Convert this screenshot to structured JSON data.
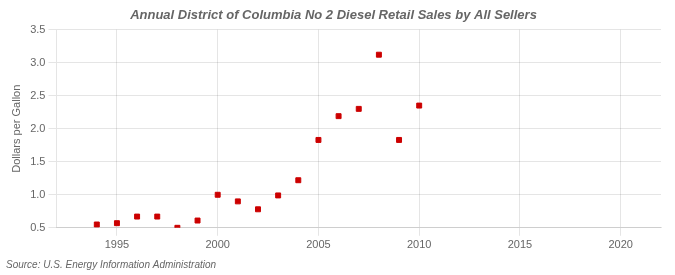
{
  "chart_data": {
    "type": "scatter",
    "title": "Annual District of Columbia No 2 Diesel Retail Sales by All Sellers",
    "ylabel": "Dollars per Gallon",
    "annotation": "Source: U.S. Energy Information Administration",
    "x": [
      1994,
      1995,
      1996,
      1997,
      1998,
      1999,
      2000,
      2001,
      2002,
      2003,
      2004,
      2005,
      2006,
      2007,
      2008,
      2009,
      2010
    ],
    "values": [
      0.55,
      0.57,
      0.67,
      0.67,
      0.5,
      0.61,
      1.0,
      0.9,
      0.78,
      0.99,
      1.22,
      1.83,
      2.19,
      2.3,
      3.12,
      1.83,
      2.35
    ],
    "color": "#cc0000",
    "marker": "square",
    "xlim": [
      1992,
      2022
    ],
    "xticks": [
      1995,
      2000,
      2005,
      2010,
      2015,
      2020
    ],
    "ylim": [
      0.5,
      3.5
    ],
    "yticks": [
      0.5,
      {
        "value": 1.0,
        "label": "1.0"
      },
      1.5,
      {
        "value": 2.0,
        "label": "2.0"
      },
      2.5,
      {
        "value": 3.0,
        "label": "3.0"
      },
      3.5
    ],
    "grid": true
  }
}
